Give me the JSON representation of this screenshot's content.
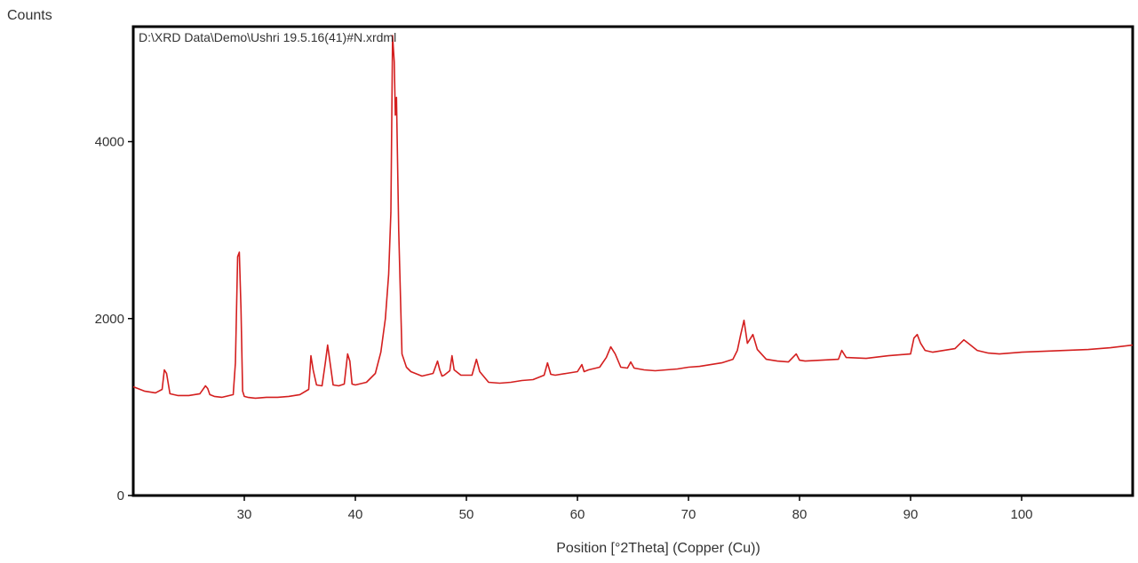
{
  "chart_data": {
    "type": "line",
    "title": "D:\\XRD Data\\Demo\\Ushri 19.5.16(41)#N.xrdml",
    "xlabel": "Position [°2Theta] (Copper (Cu))",
    "ylabel": "Counts",
    "xlim": [
      20,
      110
    ],
    "ylim": [
      0,
      5300
    ],
    "x_ticks": [
      30,
      40,
      50,
      60,
      70,
      80,
      90,
      100
    ],
    "y_ticks": [
      0,
      2000,
      4000
    ],
    "grid": false,
    "legend": "none",
    "line_color": "#d41f1f",
    "series": [
      {
        "x": [
          20.0,
          21.0,
          22.0,
          22.6,
          22.8,
          23.0,
          23.3,
          24.0,
          25.0,
          26.0,
          26.5,
          26.7,
          26.9,
          27.3,
          28.0,
          29.0,
          29.2,
          29.4,
          29.55,
          29.7,
          29.85,
          30.0,
          30.3,
          31.0,
          32.0,
          33.0,
          34.0,
          35.0,
          35.8,
          36.0,
          36.2,
          36.5,
          37.0,
          37.3,
          37.5,
          37.7,
          38.0,
          38.5,
          39.0,
          39.3,
          39.5,
          39.7,
          40.0,
          41.0,
          41.8,
          42.3,
          42.7,
          43.0,
          43.2,
          43.35,
          43.5,
          43.6,
          43.7,
          43.9,
          44.2,
          44.6,
          45.0,
          46.0,
          47.0,
          47.4,
          47.6,
          47.8,
          48.0,
          48.5,
          48.7,
          48.9,
          49.5,
          50.5,
          50.9,
          51.2,
          52.0,
          53.0,
          54.0,
          55.0,
          56.0,
          57.0,
          57.3,
          57.6,
          58.0,
          59.0,
          60.0,
          60.4,
          60.6,
          61.0,
          62.0,
          62.6,
          63.0,
          63.4,
          63.9,
          64.5,
          64.8,
          65.1,
          66.0,
          67.0,
          68.0,
          69.0,
          70.0,
          71.0,
          72.0,
          73.0,
          74.0,
          74.4,
          74.7,
          75.0,
          75.3,
          75.5,
          75.8,
          76.2,
          77.0,
          78.0,
          79.0,
          79.7,
          80.0,
          80.5,
          82.0,
          83.5,
          83.8,
          84.2,
          86.0,
          88.0,
          90.0,
          90.3,
          90.6,
          90.9,
          91.3,
          92.0,
          93.0,
          94.0,
          94.8,
          95.2,
          95.6,
          96.0,
          97.0,
          98.0,
          100.0,
          102.0,
          104.0,
          106.0,
          108.0,
          110.0
        ],
        "y": [
          1230,
          1180,
          1160,
          1200,
          1420,
          1380,
          1150,
          1130,
          1130,
          1150,
          1240,
          1210,
          1140,
          1120,
          1110,
          1140,
          1500,
          2700,
          2750,
          2100,
          1180,
          1120,
          1110,
          1100,
          1110,
          1110,
          1120,
          1140,
          1200,
          1580,
          1420,
          1250,
          1240,
          1500,
          1700,
          1520,
          1250,
          1240,
          1260,
          1600,
          1520,
          1260,
          1250,
          1280,
          1380,
          1620,
          2000,
          2500,
          3200,
          5200,
          4900,
          4300,
          4500,
          3000,
          1600,
          1450,
          1400,
          1350,
          1380,
          1520,
          1420,
          1350,
          1360,
          1410,
          1580,
          1420,
          1360,
          1360,
          1540,
          1400,
          1280,
          1270,
          1280,
          1300,
          1310,
          1360,
          1500,
          1370,
          1360,
          1380,
          1400,
          1480,
          1400,
          1420,
          1450,
          1560,
          1680,
          1600,
          1450,
          1440,
          1510,
          1440,
          1420,
          1410,
          1420,
          1430,
          1450,
          1460,
          1480,
          1500,
          1540,
          1640,
          1820,
          1980,
          1720,
          1760,
          1820,
          1650,
          1540,
          1520,
          1510,
          1600,
          1530,
          1520,
          1530,
          1540,
          1640,
          1560,
          1550,
          1580,
          1600,
          1780,
          1820,
          1720,
          1640,
          1620,
          1640,
          1660,
          1760,
          1720,
          1680,
          1640,
          1610,
          1600,
          1620,
          1630,
          1640,
          1650,
          1670,
          1700
        ]
      }
    ]
  }
}
